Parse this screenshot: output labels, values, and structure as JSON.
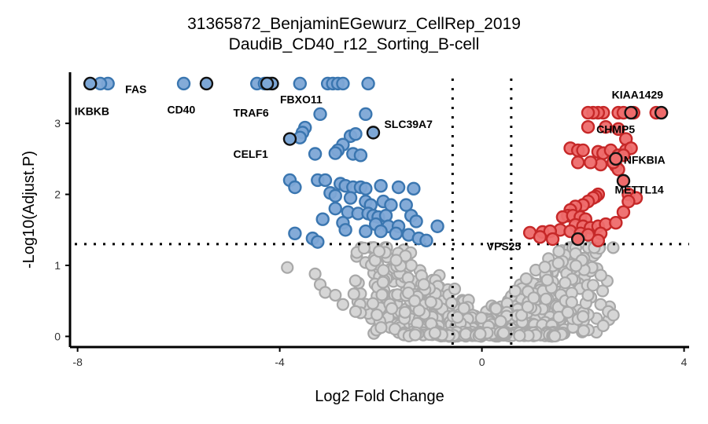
{
  "chart_data": {
    "type": "scatter",
    "title": "31365872_BenjaminEGewurz_CellRep_2019",
    "subtitle": "DaudiB_CD40_r12_Sorting_B-cell",
    "xlabel": "Log2 Fold Change",
    "ylabel": "-Log10(Adjust.P)",
    "xlim": [
      -8.15,
      4.1
    ],
    "ylim": [
      -0.15,
      3.72
    ],
    "xticks": [
      -8,
      -4,
      0,
      4
    ],
    "yticks": [
      0,
      1,
      2,
      3
    ],
    "grid": false,
    "legend": "none",
    "thresholds": {
      "fc": [
        -0.58,
        0.58
      ],
      "p": 1.3
    },
    "colors": {
      "down": "#3a76b0",
      "down_fill": "#7da7d6",
      "up": "#c62828",
      "up_fill": "#ee6b6b",
      "ns": "#a8a8a8",
      "ns_fill": "#d6d6d6",
      "highlight_stroke": "#111111"
    },
    "series": [
      {
        "name": "down",
        "points": [
          [
            -7.4,
            3.56
          ],
          [
            -7.55,
            3.56
          ],
          [
            -5.9,
            3.56
          ],
          [
            -4.45,
            3.56
          ],
          [
            -4.3,
            3.56
          ],
          [
            -4.2,
            3.56
          ],
          [
            -3.6,
            3.56
          ],
          [
            -3.05,
            3.56
          ],
          [
            -2.95,
            3.56
          ],
          [
            -2.85,
            3.56
          ],
          [
            -2.75,
            3.56
          ],
          [
            -2.25,
            3.56
          ],
          [
            -3.2,
            3.13
          ],
          [
            -2.3,
            3.13
          ],
          [
            -3.5,
            2.94
          ],
          [
            -3.55,
            2.87
          ],
          [
            -3.6,
            2.8
          ],
          [
            -2.6,
            2.82
          ],
          [
            -2.5,
            2.85
          ],
          [
            -2.75,
            2.7
          ],
          [
            -2.85,
            2.62
          ],
          [
            -2.9,
            2.58
          ],
          [
            -3.3,
            2.57
          ],
          [
            -2.55,
            2.57
          ],
          [
            -2.4,
            2.55
          ],
          [
            -3.8,
            2.2
          ],
          [
            -3.7,
            2.1
          ],
          [
            -3.25,
            2.2
          ],
          [
            -3.1,
            2.2
          ],
          [
            -2.8,
            2.15
          ],
          [
            -2.7,
            2.12
          ],
          [
            -2.55,
            2.1
          ],
          [
            -2.4,
            2.1
          ],
          [
            -2.3,
            2.08
          ],
          [
            -2.0,
            2.12
          ],
          [
            -1.65,
            2.1
          ],
          [
            -1.35,
            2.08
          ],
          [
            -3.0,
            2.02
          ],
          [
            -2.9,
            1.98
          ],
          [
            -2.6,
            1.95
          ],
          [
            -2.3,
            1.9
          ],
          [
            -2.2,
            1.85
          ],
          [
            -1.95,
            1.9
          ],
          [
            -1.8,
            1.85
          ],
          [
            -1.5,
            1.85
          ],
          [
            -2.9,
            1.8
          ],
          [
            -2.65,
            1.75
          ],
          [
            -2.45,
            1.73
          ],
          [
            -2.25,
            1.73
          ],
          [
            -2.15,
            1.7
          ],
          [
            -2.05,
            1.68
          ],
          [
            -1.9,
            1.7
          ],
          [
            -1.4,
            1.7
          ],
          [
            -1.3,
            1.62
          ],
          [
            -3.15,
            1.65
          ],
          [
            -2.75,
            1.6
          ],
          [
            -2.1,
            1.58
          ],
          [
            -1.85,
            1.55
          ],
          [
            -1.65,
            1.55
          ],
          [
            -0.88,
            1.55
          ],
          [
            -2.7,
            1.5
          ],
          [
            -2.3,
            1.48
          ],
          [
            -2.0,
            1.48
          ],
          [
            -1.7,
            1.45
          ],
          [
            -3.7,
            1.45
          ],
          [
            -3.35,
            1.38
          ],
          [
            -1.45,
            1.43
          ],
          [
            -1.25,
            1.38
          ],
          [
            -1.1,
            1.35
          ],
          [
            -3.25,
            1.33
          ]
        ]
      },
      {
        "name": "up",
        "points": [
          [
            3.45,
            3.15
          ],
          [
            2.4,
            3.15
          ],
          [
            2.3,
            3.15
          ],
          [
            2.2,
            3.15
          ],
          [
            2.1,
            3.15
          ],
          [
            2.7,
            3.15
          ],
          [
            2.8,
            3.15
          ],
          [
            3.0,
            3.15
          ],
          [
            2.1,
            2.95
          ],
          [
            2.45,
            2.95
          ],
          [
            2.7,
            2.92
          ],
          [
            2.85,
            2.78
          ],
          [
            1.75,
            2.65
          ],
          [
            1.9,
            2.62
          ],
          [
            2.0,
            2.62
          ],
          [
            2.3,
            2.6
          ],
          [
            2.4,
            2.58
          ],
          [
            2.55,
            2.62
          ],
          [
            2.85,
            2.62
          ],
          [
            2.95,
            2.65
          ],
          [
            2.7,
            2.55
          ],
          [
            2.6,
            2.45
          ],
          [
            2.65,
            2.4
          ],
          [
            2.7,
            2.35
          ],
          [
            2.6,
            2.45
          ],
          [
            2.35,
            2.42
          ],
          [
            2.15,
            2.45
          ],
          [
            1.9,
            2.45
          ],
          [
            2.8,
            2.55
          ],
          [
            2.3,
            2.0
          ],
          [
            2.25,
            1.97
          ],
          [
            2.2,
            1.95
          ],
          [
            2.1,
            1.9
          ],
          [
            2.0,
            1.85
          ],
          [
            1.85,
            1.83
          ],
          [
            1.75,
            1.78
          ],
          [
            2.9,
            2.0
          ],
          [
            3.05,
            1.95
          ],
          [
            2.9,
            1.9
          ],
          [
            1.7,
            1.7
          ],
          [
            1.6,
            1.68
          ],
          [
            1.8,
            1.7
          ],
          [
            1.95,
            1.68
          ],
          [
            2.05,
            1.65
          ],
          [
            2.8,
            1.75
          ],
          [
            1.85,
            1.57
          ],
          [
            2.0,
            1.55
          ],
          [
            2.15,
            1.53
          ],
          [
            2.3,
            1.55
          ],
          [
            2.45,
            1.58
          ],
          [
            2.65,
            1.6
          ],
          [
            1.55,
            1.5
          ],
          [
            1.75,
            1.48
          ],
          [
            1.95,
            1.45
          ],
          [
            2.1,
            1.43
          ],
          [
            2.35,
            1.45
          ],
          [
            1.2,
            1.47
          ],
          [
            1.35,
            1.48
          ],
          [
            0.95,
            1.46
          ],
          [
            1.15,
            1.4
          ],
          [
            1.4,
            1.37
          ],
          [
            2.3,
            1.35
          ]
        ]
      },
      {
        "name": "highlighted",
        "points": [
          [
            -7.75,
            3.56
          ],
          [
            -5.45,
            3.56
          ],
          [
            -4.15,
            3.56
          ],
          [
            -4.25,
            3.56
          ],
          [
            -3.8,
            2.78
          ],
          [
            -2.15,
            2.87
          ],
          [
            2.95,
            3.15
          ],
          [
            3.55,
            3.15
          ],
          [
            2.65,
            2.5
          ],
          [
            2.8,
            2.19
          ],
          [
            1.9,
            1.37
          ]
        ]
      }
    ],
    "labels": [
      {
        "text": "IKBKB",
        "x": -7.75,
        "y": 3.56
      },
      {
        "text": "FAS",
        "x": -7.4,
        "y": 3.56
      },
      {
        "text": "CD40",
        "x": -5.45,
        "y": 3.56
      },
      {
        "text": "TRAF6",
        "x": -4.25,
        "y": 3.56
      },
      {
        "text": "FBXO11",
        "x": -4.15,
        "y": 3.56
      },
      {
        "text": "CELF1",
        "x": -3.8,
        "y": 2.78
      },
      {
        "text": "SLC39A7",
        "x": -2.15,
        "y": 2.87
      },
      {
        "text": "KIAA1429",
        "x": 3.55,
        "y": 3.15
      },
      {
        "text": "CHMP5",
        "x": 2.95,
        "y": 3.15
      },
      {
        "text": "NFKBIA",
        "x": 2.65,
        "y": 2.5
      },
      {
        "text": "METTL14",
        "x": 2.8,
        "y": 2.19
      },
      {
        "text": "VPS25",
        "x": 1.9,
        "y": 1.37
      }
    ]
  }
}
